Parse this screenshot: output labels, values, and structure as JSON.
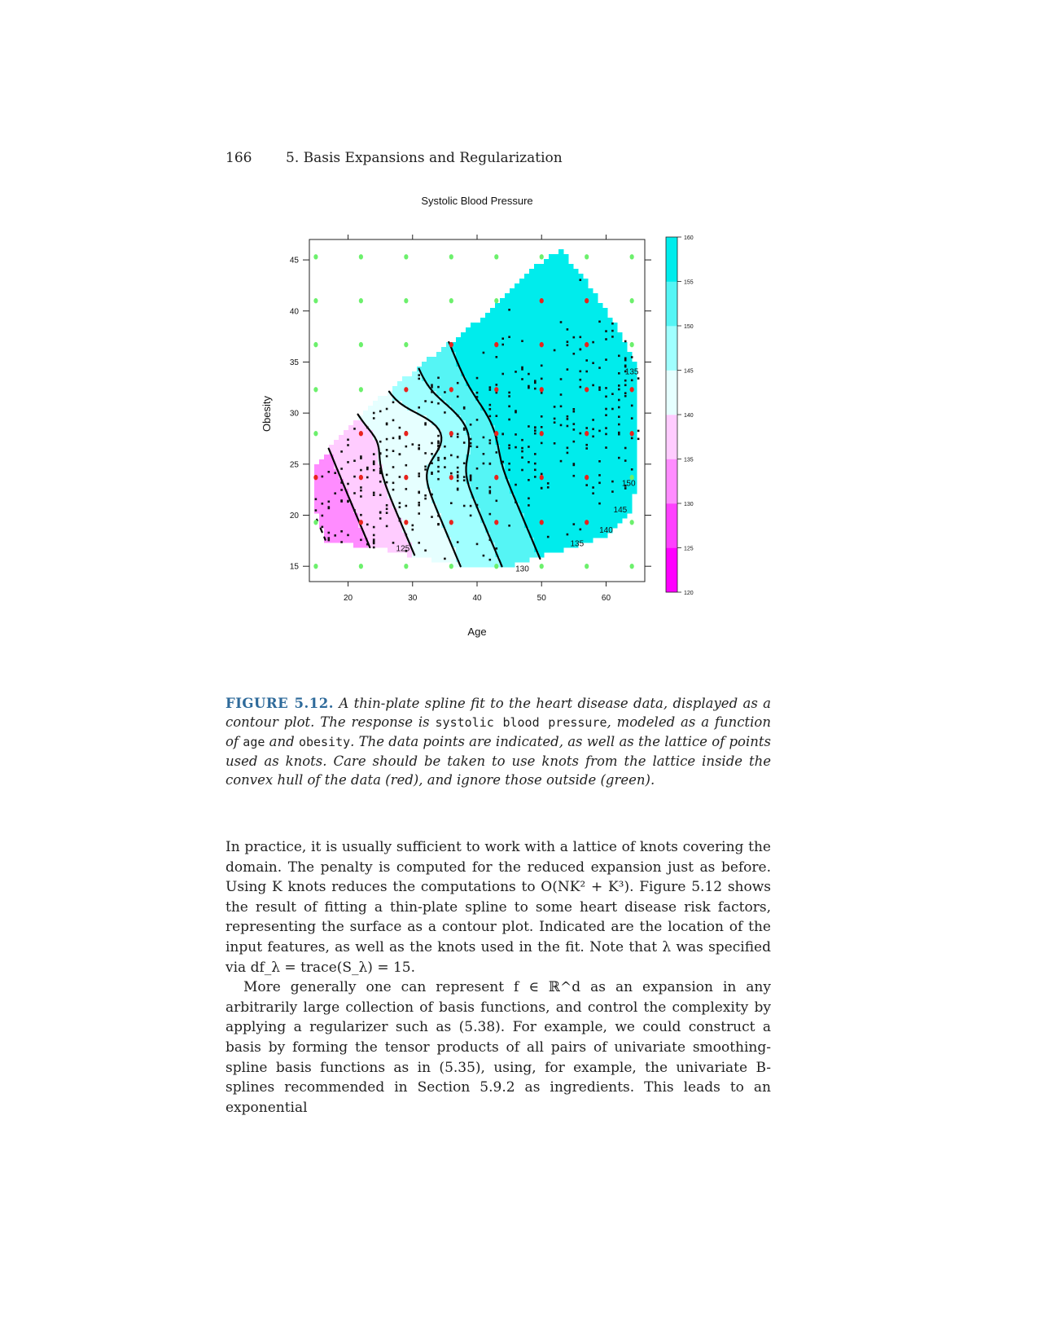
{
  "header": {
    "page_number": "166",
    "chapter_title": "5.  Basis Expansions and Regularization"
  },
  "figure": {
    "colors": {
      "knot_inside": "#e8231d",
      "knot_outside": "#6cf06c",
      "data_point": "#111111",
      "contour": "#000000",
      "low": "#ff00ff",
      "high": "#00e8e8"
    }
  },
  "chart_data": {
    "type": "contour",
    "title": "Systolic Blood Pressure",
    "xlabel": "Age",
    "ylabel": "Obesity",
    "xlim": [
      14,
      66
    ],
    "ylim": [
      13.5,
      47
    ],
    "x_ticks": [
      "20",
      "30",
      "40",
      "50",
      "60"
    ],
    "y_ticks": [
      "15",
      "20",
      "25",
      "30",
      "35",
      "40",
      "45"
    ],
    "colorbar": {
      "levels": [
        "120",
        "125",
        "130",
        "135",
        "140",
        "145",
        "150",
        "155",
        "160"
      ],
      "colors": [
        "#ff00ff",
        "#ff40ff",
        "#ff8cff",
        "#ffccff",
        "#e6ffff",
        "#a0ffff",
        "#55f5f5",
        "#00ecec"
      ]
    },
    "contour_labels": [
      {
        "text": "125",
        "x": 28.5,
        "y": 16.8
      },
      {
        "text": "130",
        "x": 47.0,
        "y": 14.8
      },
      {
        "text": "135",
        "x": 55.5,
        "y": 17.3
      },
      {
        "text": "140",
        "x": 60.0,
        "y": 18.6
      },
      {
        "text": "145",
        "x": 62.2,
        "y": 20.6
      },
      {
        "text": "150",
        "x": 63.5,
        "y": 23.2
      },
      {
        "text": "135",
        "x": 64.0,
        "y": 34.1
      }
    ],
    "knots": {
      "x": [
        15,
        22,
        29,
        36,
        43,
        50,
        57,
        64
      ],
      "y": [
        15,
        19.3,
        23.7,
        28,
        32.3,
        36.7,
        41,
        45.3
      ],
      "inside": [
        [
          15,
          23.7
        ],
        [
          22,
          19.3
        ],
        [
          22,
          23.7
        ],
        [
          22,
          28
        ],
        [
          29,
          19.3
        ],
        [
          29,
          23.7
        ],
        [
          29,
          28
        ],
        [
          29,
          32.3
        ],
        [
          36,
          19.3
        ],
        [
          36,
          23.7
        ],
        [
          36,
          28
        ],
        [
          36,
          32.3
        ],
        [
          36,
          36.7
        ],
        [
          43,
          19.3
        ],
        [
          43,
          23.7
        ],
        [
          43,
          28
        ],
        [
          43,
          32.3
        ],
        [
          43,
          36.7
        ],
        [
          50,
          19.3
        ],
        [
          50,
          23.7
        ],
        [
          50,
          28
        ],
        [
          50,
          32.3
        ],
        [
          50,
          36.7
        ],
        [
          50,
          41
        ],
        [
          57,
          19.3
        ],
        [
          57,
          23.7
        ],
        [
          57,
          28
        ],
        [
          57,
          32.3
        ],
        [
          57,
          36.7
        ],
        [
          57,
          41
        ],
        [
          64,
          28
        ],
        [
          64,
          32.3
        ]
      ]
    }
  },
  "caption": {
    "label": "FIGURE 5.12.",
    "t1": " A thin-plate spline fit to the heart disease data, displayed as a contour plot. The response is ",
    "code1": "systolic blood pressure",
    "t2": ", modeled as a function of ",
    "code2": "age",
    "t3": " and ",
    "code3": "obesity",
    "t4": ". The data points are indicated, as well as the lattice of points used as knots. Care should be taken to use knots from the lattice inside the convex hull of the data (red), and ignore those outside (green)."
  },
  "body": {
    "p1": "In practice, it is usually sufficient to work with a lattice of knots covering the domain. The penalty is computed for the reduced expansion just as before. Using K knots reduces the computations to O(NK² + K³). Figure 5.12 shows the result of fitting a thin-plate spline to some heart disease risk factors, representing the surface as a contour plot. Indicated are the location of the input features, as well as the knots used in the fit. Note that λ was specified via df_λ = trace(S_λ) = 15.",
    "p2": "More generally one can represent f ∈ ℝ^d as an expansion in any arbitrarily large collection of basis functions, and control the complexity by applying a regularizer such as (5.38). For example, we could construct a basis by forming the tensor products of all pairs of univariate smoothing-spline basis functions as in (5.35), using, for example, the univariate B-splines recommended in Section 5.9.2 as ingredients. This leads to an exponential"
  }
}
